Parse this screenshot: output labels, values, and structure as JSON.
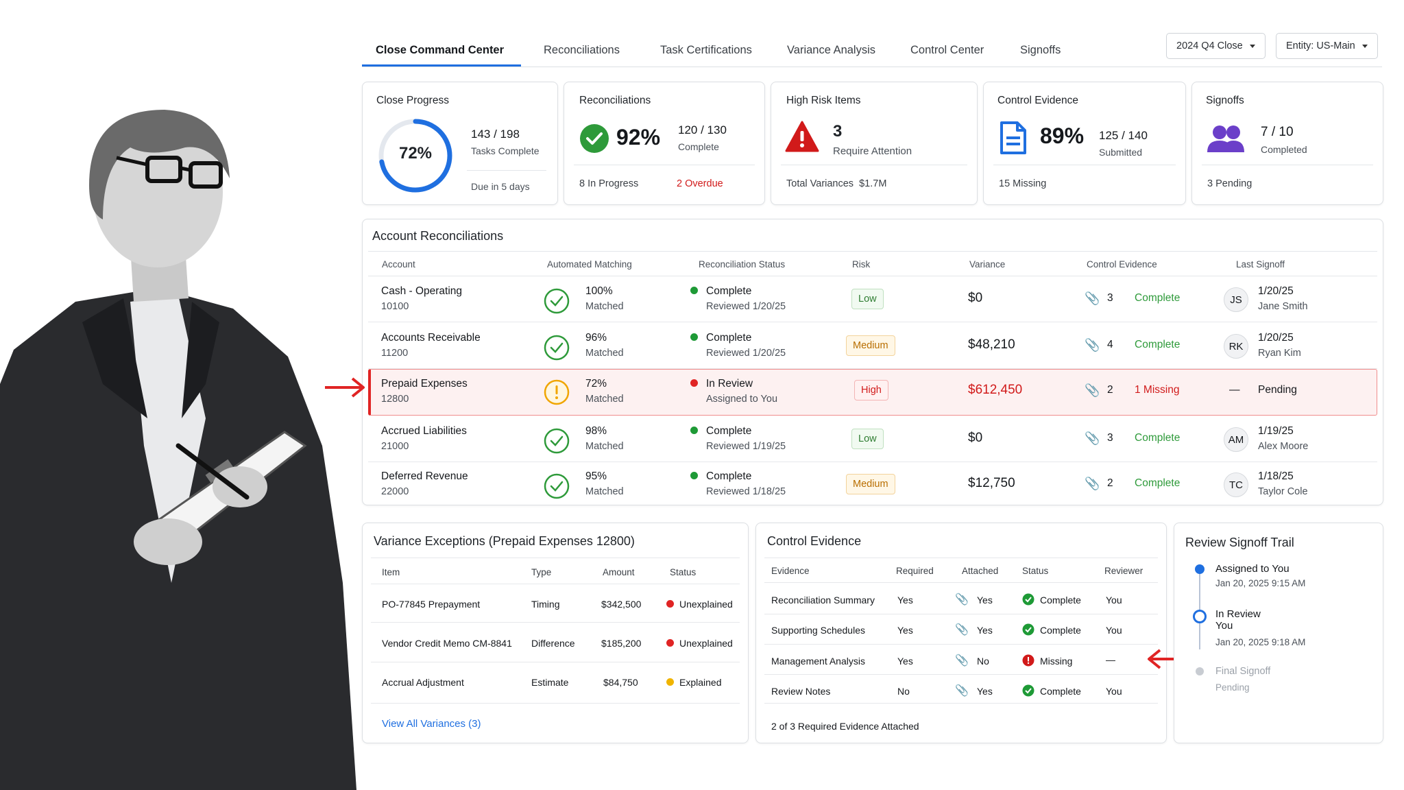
{
  "tabs": [
    {
      "label": "Close Command Center"
    },
    {
      "label": "Reconciliations"
    },
    {
      "label": "Task Certifications"
    },
    {
      "label": "Variance Analysis"
    },
    {
      "label": "Control Center"
    },
    {
      "label": "Signoffs"
    }
  ],
  "period_select": {
    "value": "2024 Q4 Close"
  },
  "entity_select": {
    "value": "Entity: US-Main"
  },
  "kpis": {
    "close_progress": {
      "title": "Close Progress",
      "percent_label": "72%",
      "percent": 72,
      "fraction": "143 / 198",
      "caption": "Tasks Complete",
      "footer": "Due in 5 days"
    },
    "reconciliations": {
      "title": "Reconciliations",
      "percent_label": "92%",
      "fraction": "120 / 130",
      "caption": "Complete",
      "footer_left": "8 In Progress",
      "footer_right": "2 Overdue"
    },
    "high_risk": {
      "title": "High Risk Items",
      "count": "3",
      "caption": "Require Attention",
      "footer": "Total Variances  $1.7M"
    },
    "control_evidence": {
      "title": "Control Evidence",
      "percent_label": "89%",
      "fraction": "125 / 140",
      "caption": "Submitted",
      "footer": "15 Missing"
    },
    "signoffs": {
      "title": "Signoffs",
      "fraction": "7 / 10",
      "caption": "Completed",
      "footer": "3 Pending"
    }
  },
  "recon": {
    "title": "Account Reconciliations",
    "headers": [
      "Account",
      "Automated Matching",
      "Reconciliation Status",
      "Risk",
      "Variance",
      "Control Evidence",
      "Last Signoff"
    ],
    "rows": [
      {
        "account": "Cash - Operating",
        "number": "10100",
        "match": "100%",
        "match_sub": "Matched",
        "status": "Complete",
        "status_sub": "Reviewed 1/20/25",
        "risk": "Low",
        "variance": "$0",
        "evidence_count": "3",
        "evidence_status": "Complete",
        "initials": "JS",
        "date": "1/20/25",
        "name": "Jane Smith"
      },
      {
        "account": "Accounts Receivable",
        "number": "11200",
        "match": "96%",
        "match_sub": "Matched",
        "status": "Complete",
        "status_sub": "Reviewed 1/20/25",
        "risk": "Medium",
        "variance": "$48,210",
        "evidence_count": "4",
        "evidence_status": "Complete",
        "initials": "RK",
        "date": "1/20/25",
        "name": "Ryan Kim"
      },
      {
        "account": "Prepaid Expenses",
        "number": "12800",
        "match": "72%",
        "match_sub": "Matched",
        "status": "In Review",
        "status_sub": "Assigned to You",
        "risk": "High",
        "variance": "$612,450",
        "evidence_count": "2",
        "evidence_status": "1 Missing",
        "initials": "—",
        "date": "Pending",
        "name": ""
      },
      {
        "account": "Accrued Liabilities",
        "number": "21000",
        "match": "98%",
        "match_sub": "Matched",
        "status": "Complete",
        "status_sub": "Reviewed 1/19/25",
        "risk": "Low",
        "variance": "$0",
        "evidence_count": "3",
        "evidence_status": "Complete",
        "initials": "AM",
        "date": "1/19/25",
        "name": "Alex Moore"
      },
      {
        "account": "Deferred Revenue",
        "number": "22000",
        "match": "95%",
        "match_sub": "Matched",
        "status": "Complete",
        "status_sub": "Reviewed 1/18/25",
        "risk": "Medium",
        "variance": "$12,750",
        "evidence_count": "2",
        "evidence_status": "Complete",
        "initials": "TC",
        "date": "1/18/25",
        "name": "Taylor Cole"
      }
    ]
  },
  "variance": {
    "title": "Variance Exceptions",
    "title_suffix": "(Prepaid Expenses 12800)",
    "headers": [
      "Item",
      "Type",
      "Amount",
      "Status"
    ],
    "rows": [
      {
        "item": "PO-77845 Prepayment",
        "type": "Timing",
        "amount": "$342,500",
        "status": "Unexplained"
      },
      {
        "item": "Vendor Credit Memo CM-8841",
        "type": "Difference",
        "amount": "$185,200",
        "status": "Unexplained"
      },
      {
        "item": "Accrual Adjustment",
        "type": "Estimate",
        "amount": "$84,750",
        "status": "Explained"
      }
    ],
    "link": "View All Variances (3)"
  },
  "evidence": {
    "title": "Control Evidence",
    "headers": [
      "Evidence",
      "Required",
      "Attached",
      "Status",
      "Reviewer"
    ],
    "rows": [
      {
        "name": "Reconciliation Summary",
        "required": "Yes",
        "attached": "Yes",
        "status": "Complete",
        "reviewer": "You"
      },
      {
        "name": "Supporting Schedules",
        "required": "Yes",
        "attached": "Yes",
        "status": "Complete",
        "reviewer": "You"
      },
      {
        "name": "Management Analysis",
        "required": "Yes",
        "attached": "No",
        "status": "Missing",
        "reviewer": "—"
      },
      {
        "name": "Review Notes",
        "required": "No",
        "attached": "Yes",
        "status": "Complete",
        "reviewer": "You"
      }
    ],
    "footer": "2 of 3 Required Evidence Attached"
  },
  "trail": {
    "title": "Review Signoff Trail",
    "steps": [
      {
        "label": "Assigned to You",
        "sub": "Jan 20, 2025 9:15 AM"
      },
      {
        "label": "In Review",
        "sub2": "You",
        "sub": "Jan 20, 2025 9:18 AM"
      },
      {
        "label": "Final Signoff",
        "sub": "Pending"
      }
    ]
  },
  "colors": {
    "accent": "#1f6fe0",
    "success": "#2e9a3a",
    "danger": "#d11a1a",
    "warning": "#f0a500"
  }
}
